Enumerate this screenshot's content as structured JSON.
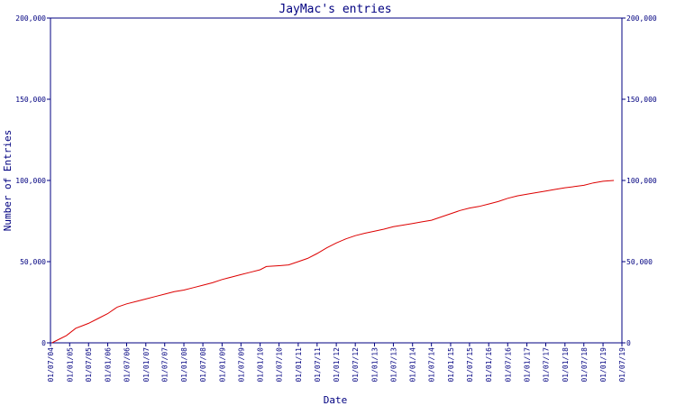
{
  "chart_data": {
    "type": "line",
    "title": "JayMac's entries",
    "xlabel": "Date",
    "ylabel": "Number of Entries",
    "ylim": [
      0,
      200000
    ],
    "yticks": [
      0,
      50000,
      100000,
      150000,
      200000
    ],
    "ytick_labels": [
      "0",
      "50,000",
      "100,000",
      "150,000",
      "200,000"
    ],
    "xlim": [
      "2004-07-01",
      "2019-07-01"
    ],
    "xtick_dates": [
      "2004-07-01",
      "2005-01-01",
      "2005-07-01",
      "2006-01-01",
      "2006-07-01",
      "2007-01-01",
      "2007-07-01",
      "2008-01-01",
      "2008-07-01",
      "2009-01-01",
      "2009-07-01",
      "2010-01-01",
      "2010-07-01",
      "2011-01-01",
      "2011-07-01",
      "2012-01-01",
      "2012-07-01",
      "2013-01-01",
      "2013-07-01",
      "2014-01-01",
      "2014-07-01",
      "2015-01-01",
      "2015-07-01",
      "2016-01-01",
      "2016-07-01",
      "2017-01-01",
      "2017-07-01",
      "2018-01-01",
      "2018-07-01",
      "2019-01-01",
      "2019-07-01"
    ],
    "xtick_labels": [
      "01/07/04",
      "01/01/05",
      "01/07/05",
      "01/01/06",
      "01/07/06",
      "01/01/07",
      "01/07/07",
      "01/01/08",
      "01/07/08",
      "01/01/09",
      "01/07/09",
      "01/01/10",
      "01/07/10",
      "01/01/11",
      "01/07/11",
      "01/01/12",
      "01/07/12",
      "01/01/13",
      "01/07/13",
      "01/01/14",
      "01/07/14",
      "01/01/15",
      "01/07/15",
      "01/01/16",
      "01/07/16",
      "01/01/17",
      "01/07/17",
      "01/01/18",
      "01/07/18",
      "01/01/19",
      "01/07/19"
    ],
    "grid": false,
    "colors": {
      "line": "#dd0000",
      "axis": "#000080",
      "text": "#000080"
    },
    "series": [
      {
        "x": [
          "2004-07-15",
          "2004-10-01",
          "2004-12-01",
          "2005-03-01",
          "2005-05-01",
          "2005-07-01",
          "2005-10-01",
          "2006-01-01",
          "2006-04-01",
          "2006-07-01",
          "2006-10-01",
          "2007-01-01",
          "2007-04-01",
          "2007-07-01",
          "2007-10-01",
          "2008-01-01",
          "2008-04-01",
          "2008-07-01",
          "2008-10-01",
          "2009-01-01",
          "2009-04-01",
          "2009-07-01",
          "2009-10-01",
          "2010-01-01",
          "2010-03-01",
          "2010-07-01",
          "2010-10-01",
          "2011-01-01",
          "2011-04-01",
          "2011-07-01",
          "2011-10-01",
          "2012-01-01",
          "2012-04-01",
          "2012-07-01",
          "2012-10-01",
          "2013-01-01",
          "2013-04-01",
          "2013-07-01",
          "2013-10-01",
          "2014-01-01",
          "2014-04-01",
          "2014-07-01",
          "2014-10-01",
          "2015-01-01",
          "2015-04-01",
          "2015-07-01",
          "2015-10-01",
          "2016-01-01",
          "2016-04-01",
          "2016-07-01",
          "2016-10-01",
          "2017-01-01",
          "2017-04-01",
          "2017-07-01",
          "2017-10-01",
          "2018-01-01",
          "2018-04-01",
          "2018-07-01",
          "2018-10-01",
          "2019-01-01",
          "2019-04-15"
        ],
        "values": [
          0,
          2500,
          4500,
          9000,
          10500,
          12000,
          15000,
          18000,
          22000,
          24000,
          25500,
          27000,
          28500,
          30000,
          31500,
          32500,
          34000,
          35500,
          37000,
          39000,
          40500,
          42000,
          43500,
          45000,
          47000,
          47500,
          48000,
          50000,
          52000,
          55000,
          58500,
          61500,
          64000,
          66000,
          67500,
          68800,
          70000,
          71500,
          72500,
          73500,
          74500,
          75500,
          77500,
          79500,
          81500,
          83000,
          84000,
          85500,
          87000,
          89000,
          90500,
          91500,
          92500,
          93500,
          94500,
          95500,
          96200,
          97000,
          98500,
          99500,
          100000
        ]
      }
    ]
  }
}
